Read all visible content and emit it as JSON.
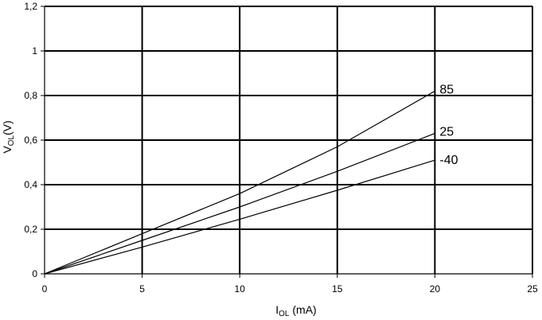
{
  "chart_data": {
    "type": "line",
    "xlabel_main": "I",
    "xlabel_sub": "OL",
    "xlabel_unit": " (mA)",
    "ylabel_main": "V",
    "ylabel_sub": "OL",
    "ylabel_unit": "(V)",
    "xlim": [
      0,
      25
    ],
    "ylim": [
      0,
      1.2
    ],
    "xticks": [
      0,
      5,
      10,
      15,
      20,
      25
    ],
    "xtick_labels": [
      "0",
      "5",
      "10",
      "15",
      "20",
      "25"
    ],
    "yticks": [
      0,
      0.2,
      0.4,
      0.6,
      0.8,
      1.0,
      1.2
    ],
    "ytick_labels": [
      "0",
      "0,2",
      "0,4",
      "0,6",
      "0,8",
      "1",
      "1,2"
    ],
    "grid": true,
    "series": [
      {
        "name": "85",
        "x": [
          0,
          5,
          10,
          15,
          20
        ],
        "y": [
          0,
          0.18,
          0.36,
          0.57,
          0.82
        ]
      },
      {
        "name": "25",
        "x": [
          0,
          5,
          10,
          15,
          20
        ],
        "y": [
          0,
          0.15,
          0.3,
          0.46,
          0.63
        ]
      },
      {
        "name": "-40",
        "x": [
          0,
          5,
          10,
          15,
          20
        ],
        "y": [
          0,
          0.12,
          0.245,
          0.375,
          0.51
        ]
      }
    ]
  }
}
